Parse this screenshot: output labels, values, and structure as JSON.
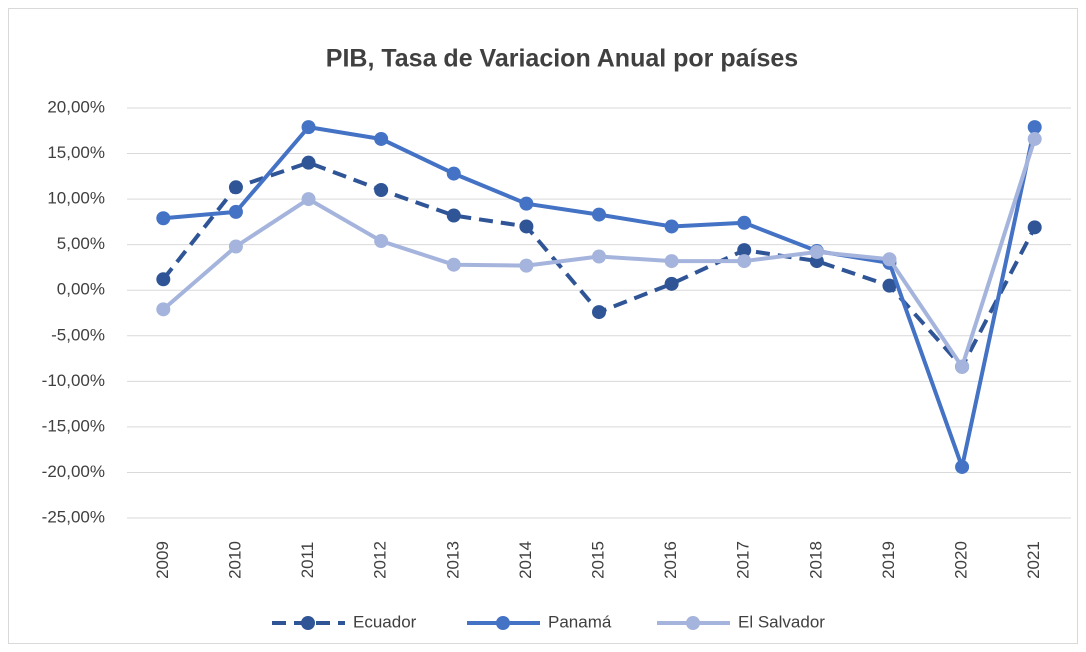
{
  "chart_data": {
    "type": "line",
    "title": "PIB, Tasa de Variacion Anual por países",
    "categories": [
      "2009",
      "2010",
      "2011",
      "2012",
      "2013",
      "2014",
      "2015",
      "2016",
      "2017",
      "2018",
      "2019",
      "2020",
      "2021"
    ],
    "series": [
      {
        "name": "Ecuador",
        "color": "#2f5597",
        "line_style": "dashed",
        "values": [
          1.2,
          11.3,
          14.0,
          11.0,
          8.2,
          7.0,
          -2.4,
          0.7,
          4.4,
          3.2,
          0.5,
          -8.4,
          6.9
        ]
      },
      {
        "name": "Panamá",
        "color": "#4472c4",
        "line_style": "solid",
        "values": [
          7.9,
          8.6,
          17.9,
          16.6,
          12.8,
          9.5,
          8.3,
          7.0,
          7.4,
          4.3,
          3.0,
          -19.4,
          17.9
        ]
      },
      {
        "name": "El Salvador",
        "color": "#a5b4dc",
        "line_style": "solid",
        "values": [
          -2.1,
          4.8,
          10.0,
          5.4,
          2.8,
          2.7,
          3.7,
          3.2,
          3.2,
          4.2,
          3.4,
          -8.4,
          16.6
        ]
      }
    ],
    "ylim": [
      -25,
      20
    ],
    "yticks": [
      {
        "value": -25,
        "label": "-25,00%"
      },
      {
        "value": -20,
        "label": "-20,00%"
      },
      {
        "value": -15,
        "label": "-15,00%"
      },
      {
        "value": -10,
        "label": "-10,00%"
      },
      {
        "value": -5,
        "label": "-5,00%"
      },
      {
        "value": 0,
        "label": "0,00%"
      },
      {
        "value": 5,
        "label": "5,00%"
      },
      {
        "value": 10,
        "label": "10,00%"
      },
      {
        "value": 15,
        "label": "15,00%"
      },
      {
        "value": 20,
        "label": "20,00%"
      }
    ],
    "grid": true,
    "legend": "bottom"
  }
}
